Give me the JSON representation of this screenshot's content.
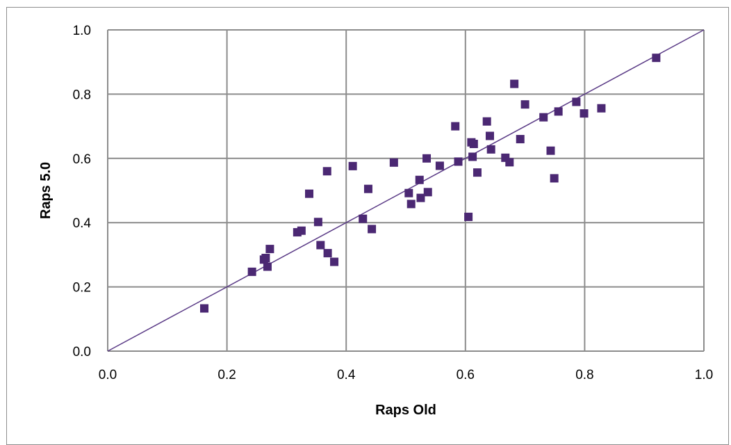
{
  "chart_data": {
    "type": "scatter",
    "title": "",
    "xlabel": "Raps Old",
    "ylabel": "Raps 5.0",
    "xlim": [
      0.0,
      1.0
    ],
    "ylim": [
      0.0,
      1.0
    ],
    "xticks": [
      "0.0",
      "0.2",
      "0.4",
      "0.6",
      "0.8",
      "1.0"
    ],
    "yticks": [
      "0.0",
      "0.2",
      "0.4",
      "0.6",
      "0.8",
      "1.0"
    ],
    "grid": true,
    "legend": "none",
    "marker": "square",
    "marker_color": "#4b2873",
    "line_color": "#5a3a86",
    "grid_color": "#8c8c8c",
    "reference_line": {
      "x": [
        0.0,
        1.0
      ],
      "y": [
        0.0,
        1.0
      ]
    },
    "series": [
      {
        "x": [
          0.162,
          0.242,
          0.262,
          0.265,
          0.268,
          0.272,
          0.318,
          0.325,
          0.338,
          0.353,
          0.357,
          0.368,
          0.369,
          0.38,
          0.411,
          0.428,
          0.437,
          0.443,
          0.48,
          0.505,
          0.509,
          0.523,
          0.525,
          0.535,
          0.537,
          0.557,
          0.583,
          0.588,
          0.605,
          0.61,
          0.612,
          0.614,
          0.62,
          0.636,
          0.641,
          0.643,
          0.667,
          0.674,
          0.682,
          0.692,
          0.7,
          0.731,
          0.743,
          0.749,
          0.756,
          0.786,
          0.799,
          0.828,
          0.92
        ],
        "y": [
          0.133,
          0.247,
          0.285,
          0.29,
          0.263,
          0.318,
          0.37,
          0.375,
          0.49,
          0.402,
          0.33,
          0.56,
          0.305,
          0.278,
          0.576,
          0.412,
          0.505,
          0.38,
          0.587,
          0.492,
          0.458,
          0.533,
          0.477,
          0.6,
          0.495,
          0.577,
          0.7,
          0.59,
          0.418,
          0.65,
          0.605,
          0.645,
          0.556,
          0.715,
          0.67,
          0.628,
          0.602,
          0.588,
          0.832,
          0.66,
          0.768,
          0.728,
          0.624,
          0.538,
          0.746,
          0.776,
          0.74,
          0.756,
          0.913
        ]
      }
    ]
  }
}
